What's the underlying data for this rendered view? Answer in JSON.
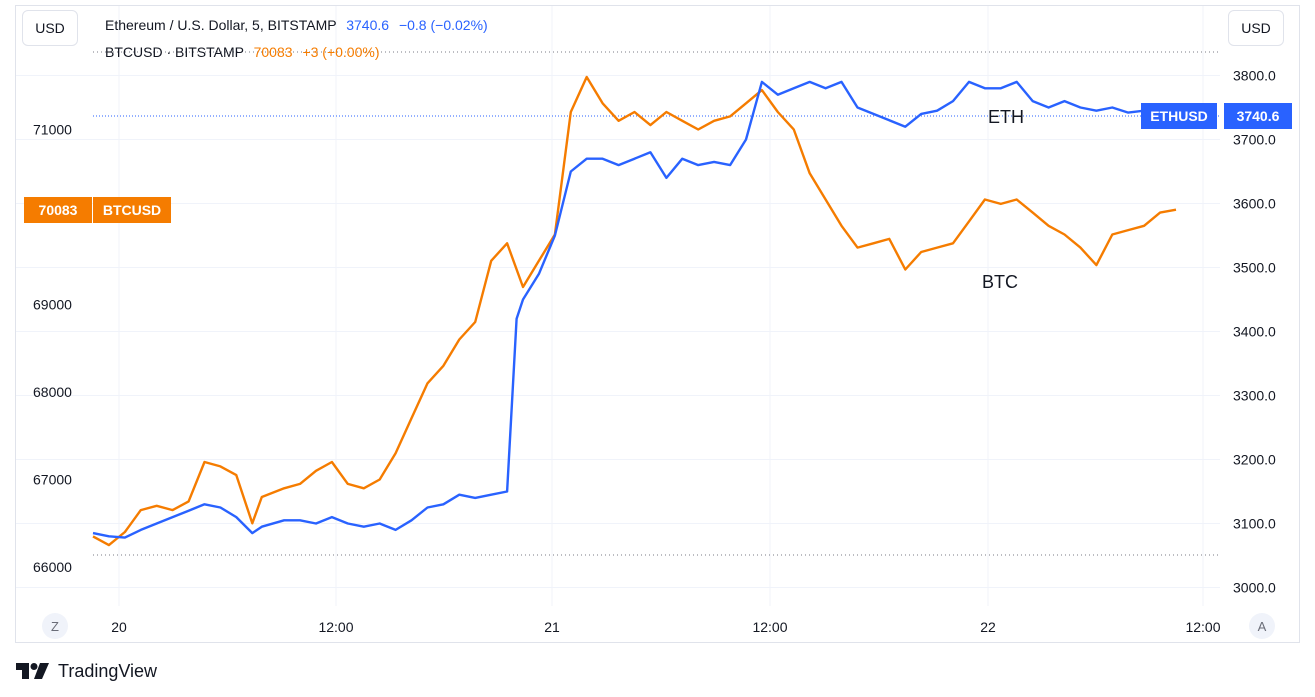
{
  "header": {
    "left_currency_button": "USD",
    "right_currency_button": "USD",
    "legend": [
      {
        "symbol": "Ethereum / U.S. Dollar, 5, BITSTAMP",
        "last": "3740.6",
        "change": "−0.8 (−0.02%)",
        "color": "#2962ff"
      },
      {
        "symbol": "BTCUSD · BITSTAMP",
        "last": "70083",
        "change": "+3 (+0.00%)",
        "color": "#f57c00"
      }
    ]
  },
  "footer": {
    "timezone_button": "Z",
    "autoscale_button": "A",
    "brand_text": "TradingView"
  },
  "chart_data": {
    "type": "line",
    "x": [
      "20",
      "12:00",
      "21",
      "12:00",
      "22",
      "12:00"
    ],
    "annotations": [
      "ETH",
      "BTC"
    ],
    "left_axis": {
      "ticks": [
        "66000",
        "67000",
        "68000",
        "69000",
        "71000"
      ],
      "range": [
        65800,
        71800
      ]
    },
    "right_axis": {
      "ticks": [
        "3000.0",
        "3100.0",
        "3200.0",
        "3300.0",
        "3400.0",
        "3500.0",
        "3600.0",
        "3700.0",
        "3800.0"
      ],
      "range": [
        2980,
        3830
      ]
    },
    "badges": {
      "btc": {
        "value": "70083",
        "label": "BTCUSD"
      },
      "eth": {
        "label": "ETHUSD",
        "value": "3740.6"
      }
    },
    "series": [
      {
        "name": "BTCUSD",
        "axis": "left",
        "color": "#f57c00",
        "values": [
          [
            0.0,
            66350
          ],
          [
            0.5,
            66250
          ],
          [
            1.0,
            66400
          ],
          [
            1.5,
            66650
          ],
          [
            2.0,
            66700
          ],
          [
            2.5,
            66650
          ],
          [
            3.0,
            66750
          ],
          [
            3.5,
            67200
          ],
          [
            4.0,
            67150
          ],
          [
            4.5,
            67050
          ],
          [
            5.0,
            66500
          ],
          [
            5.3,
            66800
          ],
          [
            6.0,
            66900
          ],
          [
            6.5,
            66950
          ],
          [
            7.0,
            67100
          ],
          [
            7.5,
            67200
          ],
          [
            8.0,
            66950
          ],
          [
            8.5,
            66900
          ],
          [
            9.0,
            67000
          ],
          [
            9.5,
            67300
          ],
          [
            10.0,
            67700
          ],
          [
            10.5,
            68100
          ],
          [
            11.0,
            68300
          ],
          [
            11.5,
            68600
          ],
          [
            12.0,
            68800
          ],
          [
            12.5,
            69500
          ],
          [
            13.0,
            69700
          ],
          [
            13.5,
            69200
          ],
          [
            14.0,
            69500
          ],
          [
            14.5,
            69800
          ],
          [
            15.0,
            71200
          ],
          [
            15.5,
            71600
          ],
          [
            16.0,
            71300
          ],
          [
            16.5,
            71100
          ],
          [
            17.0,
            71200
          ],
          [
            17.5,
            71050
          ],
          [
            18.0,
            71200
          ],
          [
            18.5,
            71100
          ],
          [
            19.0,
            71000
          ],
          [
            19.5,
            71100
          ],
          [
            20.0,
            71150
          ],
          [
            20.5,
            71300
          ],
          [
            21.0,
            71450
          ],
          [
            21.5,
            71200
          ],
          [
            22.0,
            71000
          ],
          [
            22.5,
            70500
          ],
          [
            23.0,
            70200
          ],
          [
            23.5,
            69900
          ],
          [
            24.0,
            69650
          ],
          [
            24.5,
            69700
          ],
          [
            25.0,
            69750
          ],
          [
            25.5,
            69400
          ],
          [
            26.0,
            69600
          ],
          [
            26.5,
            69650
          ],
          [
            27.0,
            69700
          ],
          [
            27.5,
            69950
          ],
          [
            28.0,
            70200
          ],
          [
            28.5,
            70150
          ],
          [
            29.0,
            70200
          ],
          [
            29.5,
            70050
          ],
          [
            30.0,
            69900
          ],
          [
            30.5,
            69800
          ],
          [
            31.0,
            69650
          ],
          [
            31.5,
            69450
          ],
          [
            32.0,
            69800
          ],
          [
            32.5,
            69850
          ],
          [
            33.0,
            69900
          ],
          [
            33.5,
            70050
          ],
          [
            34.0,
            70083
          ]
        ]
      },
      {
        "name": "ETHUSD",
        "axis": "right",
        "color": "#2962ff",
        "values": [
          [
            0.0,
            3085
          ],
          [
            0.5,
            3080
          ],
          [
            1.0,
            3078
          ],
          [
            1.5,
            3090
          ],
          [
            2.0,
            3100
          ],
          [
            2.5,
            3110
          ],
          [
            3.0,
            3120
          ],
          [
            3.5,
            3130
          ],
          [
            4.0,
            3125
          ],
          [
            4.5,
            3110
          ],
          [
            5.0,
            3085
          ],
          [
            5.3,
            3095
          ],
          [
            6.0,
            3105
          ],
          [
            6.5,
            3105
          ],
          [
            7.0,
            3100
          ],
          [
            7.5,
            3110
          ],
          [
            8.0,
            3100
          ],
          [
            8.5,
            3095
          ],
          [
            9.0,
            3100
          ],
          [
            9.5,
            3090
          ],
          [
            10.0,
            3105
          ],
          [
            10.5,
            3125
          ],
          [
            11.0,
            3130
          ],
          [
            11.5,
            3145
          ],
          [
            12.0,
            3140
          ],
          [
            12.5,
            3145
          ],
          [
            13.0,
            3150
          ],
          [
            13.3,
            3420
          ],
          [
            13.5,
            3450
          ],
          [
            14.0,
            3490
          ],
          [
            14.5,
            3550
          ],
          [
            15.0,
            3650
          ],
          [
            15.5,
            3670
          ],
          [
            16.0,
            3670
          ],
          [
            16.5,
            3660
          ],
          [
            17.0,
            3670
          ],
          [
            17.5,
            3680
          ],
          [
            18.0,
            3640
          ],
          [
            18.5,
            3670
          ],
          [
            19.0,
            3660
          ],
          [
            19.5,
            3665
          ],
          [
            20.0,
            3660
          ],
          [
            20.5,
            3700
          ],
          [
            21.0,
            3790
          ],
          [
            21.5,
            3770
          ],
          [
            22.0,
            3780
          ],
          [
            22.5,
            3790
          ],
          [
            23.0,
            3780
          ],
          [
            23.5,
            3790
          ],
          [
            24.0,
            3750
          ],
          [
            24.5,
            3740
          ],
          [
            25.0,
            3730
          ],
          [
            25.5,
            3720
          ],
          [
            26.0,
            3740
          ],
          [
            26.5,
            3745
          ],
          [
            27.0,
            3760
          ],
          [
            27.5,
            3790
          ],
          [
            28.0,
            3780
          ],
          [
            28.5,
            3780
          ],
          [
            29.0,
            3790
          ],
          [
            29.5,
            3760
          ],
          [
            30.0,
            3750
          ],
          [
            30.5,
            3760
          ],
          [
            31.0,
            3750
          ],
          [
            31.5,
            3745
          ],
          [
            32.0,
            3750
          ],
          [
            32.5,
            3742
          ],
          [
            33.0,
            3745
          ],
          [
            33.5,
            3740
          ],
          [
            34.0,
            3740.6
          ]
        ]
      }
    ]
  }
}
